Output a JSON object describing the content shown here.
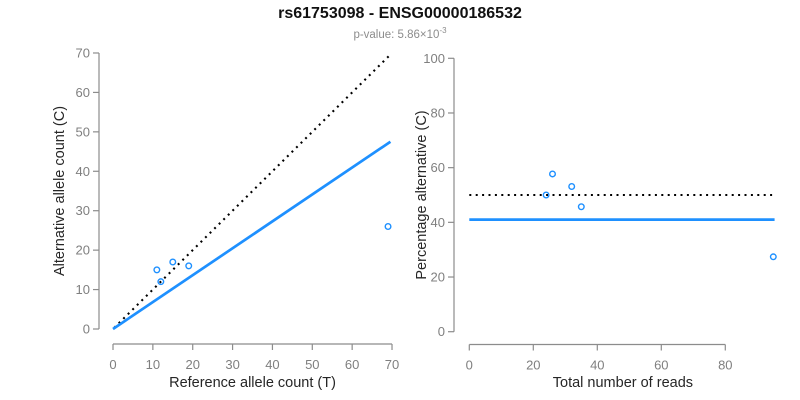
{
  "header": {
    "title": "rs61753098 - ENSG00000186532",
    "subtitle_prefix": "p-value: 5.86×10",
    "subtitle_exponent": "-3"
  },
  "colors": {
    "accent_blue": "#1E90FF",
    "line_black": "#000000",
    "axis_gray": "#8c8c8c",
    "tick_label_gray": "#7f7f7f",
    "axis_title_dark": "#262626",
    "subtitle_gray": "#8c8c8c"
  },
  "chart_data": [
    {
      "id": "plot-left",
      "type": "scatter",
      "name": "allele-count-scatter",
      "xlabel": "Reference allele count (T)",
      "ylabel": "Alternative allele count (C)",
      "xlim": [
        0,
        70
      ],
      "ylim": [
        0,
        70
      ],
      "xticks": [
        0,
        10,
        20,
        30,
        40,
        50,
        60,
        70
      ],
      "yticks": [
        0,
        10,
        20,
        30,
        40,
        50,
        60,
        70
      ],
      "grid": false,
      "legend": false,
      "points": [
        [
          11,
          15
        ],
        [
          12,
          12
        ],
        [
          15,
          17
        ],
        [
          19,
          16
        ],
        [
          69,
          26
        ]
      ],
      "lines": [
        {
          "name": "identity-dotted-line",
          "style": "dotted",
          "color": "#000000",
          "x1": 0.3,
          "y1": 0.3,
          "x2": 69.4,
          "y2": 69.4
        },
        {
          "name": "fit-line",
          "style": "solid",
          "color": "#1E90FF",
          "x1": 0,
          "y1": 0,
          "x2": 69.6,
          "y2": 47.5
        }
      ]
    },
    {
      "id": "plot-right",
      "type": "scatter",
      "name": "percentage-vs-reads-scatter",
      "xlabel": "Total number of reads",
      "ylabel": "Percentage alternative (C)",
      "xlim": [
        0,
        96
      ],
      "ylim": [
        0,
        100
      ],
      "xticks": [
        0,
        20,
        40,
        60,
        80
      ],
      "yticks": [
        0,
        20,
        40,
        60,
        80,
        100
      ],
      "grid": false,
      "legend": false,
      "points": [
        [
          26,
          57.7
        ],
        [
          24,
          50
        ],
        [
          32,
          53.1
        ],
        [
          35,
          45.7
        ],
        [
          95,
          27.4
        ]
      ],
      "lines": [
        {
          "name": "fifty-percent-dotted-line",
          "style": "dotted",
          "color": "#000000",
          "x1": 0,
          "y1": 50,
          "x2": 95.4,
          "y2": 50
        },
        {
          "name": "mean-percentage-line",
          "style": "solid",
          "color": "#1E90FF",
          "x1": 0,
          "y1": 41,
          "x2": 95.4,
          "y2": 41
        }
      ]
    }
  ]
}
